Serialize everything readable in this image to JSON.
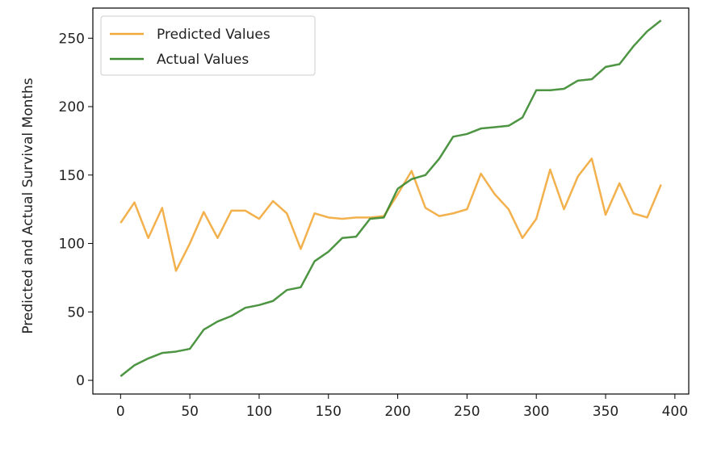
{
  "chart_data": {
    "type": "line",
    "title": "",
    "xlabel": "",
    "ylabel": "Predicted and Actual Survival Months",
    "xlim": [
      -20,
      410
    ],
    "ylim": [
      -10,
      272
    ],
    "xticks": [
      0,
      50,
      100,
      150,
      200,
      250,
      300,
      350,
      400
    ],
    "yticks": [
      0,
      50,
      100,
      150,
      200,
      250
    ],
    "grid": false,
    "legend_position": "top-left",
    "x": [
      0,
      10,
      20,
      30,
      40,
      50,
      60,
      70,
      80,
      90,
      100,
      110,
      120,
      130,
      140,
      150,
      160,
      170,
      180,
      190,
      200,
      210,
      220,
      230,
      240,
      250,
      260,
      270,
      280,
      290,
      300,
      310,
      320,
      330,
      340,
      350,
      360,
      370,
      380,
      390
    ],
    "series": [
      {
        "name": "Predicted Values",
        "color": "#F2A93B",
        "values": [
          115,
          130,
          104,
          126,
          80,
          100,
          123,
          104,
          124,
          124,
          118,
          131,
          122,
          96,
          122,
          119,
          118,
          119,
          119,
          120,
          136,
          153,
          126,
          120,
          122,
          125,
          151,
          136,
          125,
          104,
          118,
          154,
          125,
          149,
          162,
          121,
          144,
          122,
          119,
          143
        ]
      },
      {
        "name": "Actual Values",
        "color": "#3A8A2F",
        "values": [
          3,
          11,
          16,
          20,
          21,
          23,
          37,
          43,
          47,
          53,
          55,
          58,
          66,
          68,
          87,
          94,
          104,
          105,
          118,
          119,
          140,
          147,
          150,
          162,
          178,
          180,
          184,
          185,
          186,
          192,
          212,
          212,
          213,
          219,
          220,
          229,
          231,
          244,
          255,
          263
        ]
      }
    ]
  }
}
